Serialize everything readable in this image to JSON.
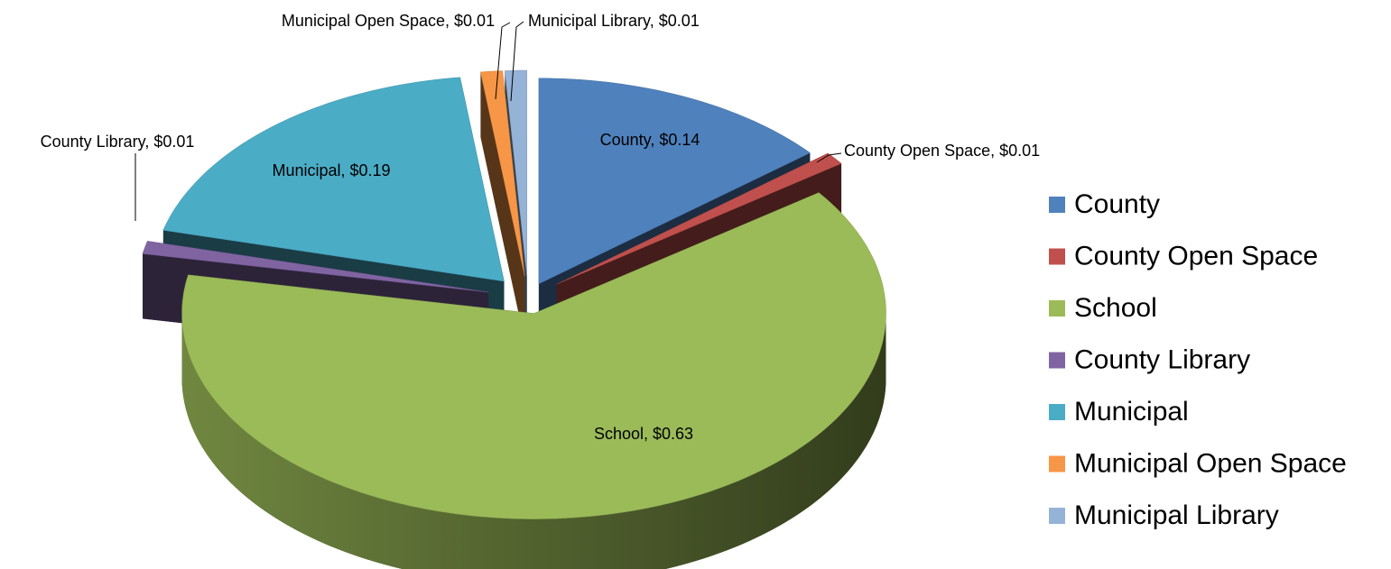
{
  "chart_data": {
    "type": "pie",
    "categories": [
      "County",
      "County Open Space",
      "School",
      "County Library",
      "Municipal",
      "Municipal Open Space",
      "Municipal Library"
    ],
    "values": [
      0.14,
      0.01,
      0.63,
      0.01,
      0.19,
      0.01,
      0.01
    ],
    "value_labels": [
      "County, $0.14",
      "County Open Space, $0.01",
      "School, $0.63",
      "County Library, $0.01",
      "Municipal, $0.19",
      "Municipal Open Space, $0.01",
      "Municipal Library, $0.01"
    ],
    "colors": [
      "#4f81bd",
      "#c0504d",
      "#9bbb59",
      "#8064a2",
      "#4bacc6",
      "#f79646",
      "#95b3d7"
    ],
    "legend": "right"
  }
}
